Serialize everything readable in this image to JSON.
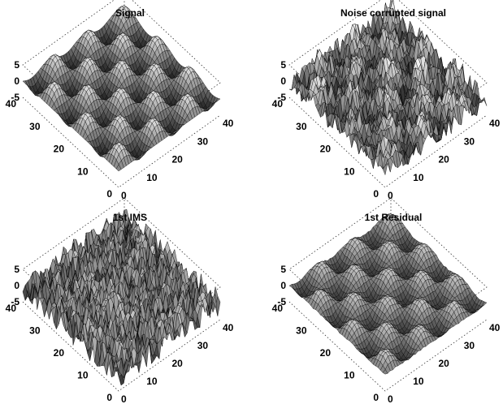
{
  "chart_data": [
    {
      "type": "surface",
      "title": "Signal",
      "xlim": [
        0,
        40
      ],
      "ylim": [
        0,
        40
      ],
      "zlim": [
        -5,
        5
      ],
      "x_ticks": [
        "0",
        "10",
        "20",
        "30",
        "40"
      ],
      "y_ticks": [
        "0",
        "10",
        "20",
        "30",
        "40"
      ],
      "z_ticks": [
        "5",
        "0",
        "-5"
      ],
      "grid_points": 41,
      "surface": "smooth sinusoidal pattern, amplitude ~5, about 3 peaks per axis",
      "colormap": "gray"
    },
    {
      "type": "surface",
      "title": "Noise corrupted signal",
      "xlim": [
        0,
        40
      ],
      "ylim": [
        0,
        40
      ],
      "zlim": [
        -5,
        5
      ],
      "x_ticks": [
        "0",
        "10",
        "20",
        "30",
        "40"
      ],
      "y_ticks": [
        "0",
        "10",
        "20",
        "30",
        "40"
      ],
      "z_ticks": [
        "5",
        "0",
        "-5"
      ],
      "grid_points": 41,
      "surface": "sinusoidal signal plus random noise",
      "colormap": "gray"
    },
    {
      "type": "surface",
      "title": "1st IMS",
      "xlim": [
        0,
        40
      ],
      "ylim": [
        0,
        40
      ],
      "zlim": [
        -5,
        5
      ],
      "x_ticks": [
        "0",
        "10",
        "20",
        "30",
        "40"
      ],
      "y_ticks": [
        "0",
        "10",
        "20",
        "30",
        "40"
      ],
      "z_ticks": [
        "5",
        "0",
        "-5"
      ],
      "grid_points": 41,
      "surface": "high-frequency noise component",
      "colormap": "gray"
    },
    {
      "type": "surface",
      "title": "1st Residual",
      "xlim": [
        0,
        40
      ],
      "ylim": [
        0,
        40
      ],
      "zlim": [
        -5,
        5
      ],
      "x_ticks": [
        "0",
        "10",
        "20",
        "30",
        "40"
      ],
      "y_ticks": [
        "0",
        "10",
        "20",
        "30",
        "40"
      ],
      "z_ticks": [
        "5",
        "0",
        "-5"
      ],
      "grid_points": 41,
      "surface": "recovered smooth sinusoidal pattern",
      "colormap": "gray"
    }
  ]
}
